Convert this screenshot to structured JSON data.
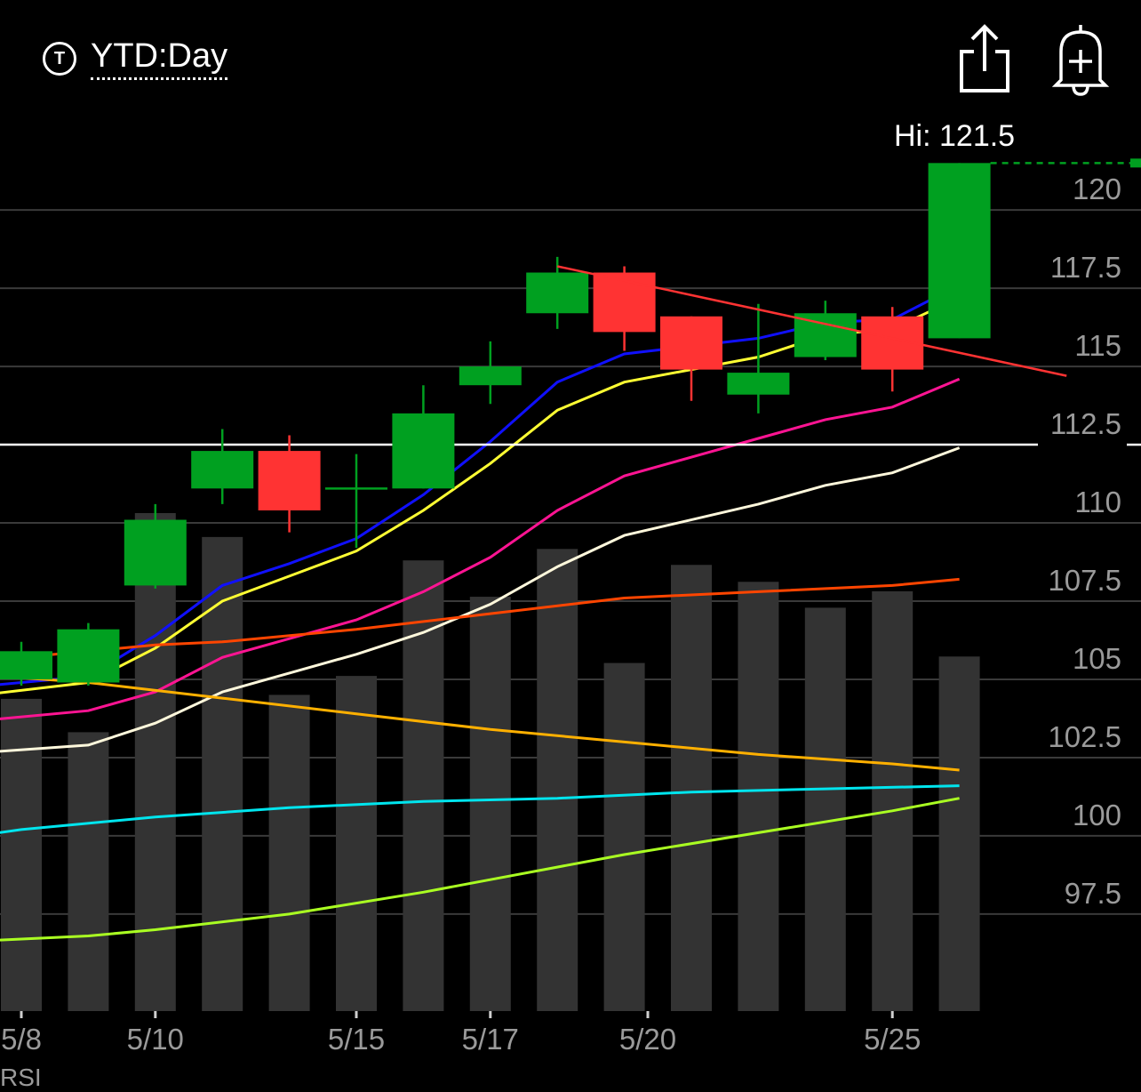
{
  "header": {
    "period_icon": "T",
    "period_label": "YTD:Day",
    "share_icon": "share-icon",
    "alert_icon": "bell-plus-icon"
  },
  "hi_label": "Hi: 121.5",
  "rsi_label": "RSI",
  "chart_data": {
    "type": "candlestick",
    "y_ticks": [
      "120",
      "117.5",
      "115",
      "112.5",
      "110",
      "107.5",
      "105",
      "102.5",
      "100",
      "97.5"
    ],
    "ylim": [
      94.4,
      123.3
    ],
    "x_tick_labels": [
      {
        "label": "5/8",
        "day": 0
      },
      {
        "label": "5/10",
        "day": 2
      },
      {
        "label": "5/15",
        "day": 5
      },
      {
        "label": "5/17",
        "day": 7
      },
      {
        "label": "5/20",
        "day": 9.35
      },
      {
        "label": "5/25",
        "day": 13
      }
    ],
    "candles": [
      {
        "day": 0,
        "open": 105.0,
        "close": 105.9,
        "high": 106.2,
        "low": 104.8
      },
      {
        "day": 1,
        "open": 104.9,
        "close": 106.6,
        "high": 106.8,
        "low": 104.8
      },
      {
        "day": 2,
        "open": 108.0,
        "close": 110.1,
        "high": 110.6,
        "low": 107.9
      },
      {
        "day": 3,
        "open": 111.1,
        "close": 112.3,
        "high": 113.0,
        "low": 110.6
      },
      {
        "day": 4,
        "open": 112.3,
        "close": 110.4,
        "high": 112.8,
        "low": 109.7
      },
      {
        "day": 5,
        "open": 111.1,
        "close": 111.1,
        "high": 112.2,
        "low": 109.2
      },
      {
        "day": 6,
        "open": 111.1,
        "close": 113.5,
        "high": 114.4,
        "low": 111.1
      },
      {
        "day": 7,
        "open": 114.4,
        "close": 115.0,
        "high": 115.8,
        "low": 113.8
      },
      {
        "day": 8,
        "open": 116.7,
        "close": 118.0,
        "high": 118.5,
        "low": 116.2
      },
      {
        "day": 9,
        "open": 118.0,
        "close": 116.1,
        "high": 118.2,
        "low": 115.5
      },
      {
        "day": 10,
        "open": 116.6,
        "close": 114.9,
        "high": 116.6,
        "low": 113.9
      },
      {
        "day": 11,
        "open": 114.1,
        "close": 114.8,
        "high": 117.0,
        "low": 113.5
      },
      {
        "day": 12,
        "open": 115.3,
        "close": 116.7,
        "high": 117.1,
        "low": 115.2
      },
      {
        "day": 13,
        "open": 116.6,
        "close": 114.9,
        "high": 116.9,
        "low": 114.2
      },
      {
        "day": 14,
        "open": 115.9,
        "close": 121.5,
        "high": 121.5,
        "low": 115.9
      }
    ],
    "volume": {
      "max_level": 1.0,
      "levels": [
        0.627,
        0.56,
        1.0,
        0.952,
        0.635,
        0.673,
        0.905,
        0.832,
        0.928,
        0.699,
        0.896,
        0.862,
        0.81,
        0.843,
        0.712
      ]
    },
    "moving_averages": [
      {
        "color": "#1010ff",
        "points": [
          [
            -1,
            104.7
          ],
          [
            1,
            105.1
          ],
          [
            2,
            106.4
          ],
          [
            3,
            108.0
          ],
          [
            4,
            108.7
          ],
          [
            5,
            109.5
          ],
          [
            6,
            110.9
          ],
          [
            7,
            112.6
          ],
          [
            8,
            114.5
          ],
          [
            9,
            115.4
          ],
          [
            11,
            115.9
          ],
          [
            12,
            116.4
          ],
          [
            13,
            116.5
          ],
          [
            14,
            117.6
          ]
        ]
      },
      {
        "color": "#ffff33",
        "points": [
          [
            -1,
            104.4
          ],
          [
            1,
            104.9
          ],
          [
            2,
            106.0
          ],
          [
            3,
            107.5
          ],
          [
            4,
            108.3
          ],
          [
            5,
            109.1
          ],
          [
            6,
            110.4
          ],
          [
            7,
            111.9
          ],
          [
            8,
            113.6
          ],
          [
            9,
            114.5
          ],
          [
            11,
            115.3
          ],
          [
            12,
            116.0
          ],
          [
            13,
            116.2
          ],
          [
            14,
            117.2
          ]
        ]
      },
      {
        "color": "#ff1493",
        "points": [
          [
            -1,
            103.6
          ],
          [
            1,
            104.0
          ],
          [
            2,
            104.6
          ],
          [
            3,
            105.7
          ],
          [
            4,
            106.3
          ],
          [
            5,
            106.9
          ],
          [
            6,
            107.8
          ],
          [
            7,
            108.9
          ],
          [
            8,
            110.4
          ],
          [
            9,
            111.5
          ],
          [
            11,
            112.7
          ],
          [
            12,
            113.3
          ],
          [
            13,
            113.7
          ],
          [
            14,
            114.6
          ]
        ]
      },
      {
        "color": "#fff8dc",
        "points": [
          [
            -1,
            102.6
          ],
          [
            1,
            102.9
          ],
          [
            2,
            103.6
          ],
          [
            3,
            104.6
          ],
          [
            4,
            105.2
          ],
          [
            5,
            105.8
          ],
          [
            6,
            106.5
          ],
          [
            7,
            107.4
          ],
          [
            8,
            108.6
          ],
          [
            9,
            109.6
          ],
          [
            11,
            110.6
          ],
          [
            12,
            111.2
          ],
          [
            13,
            111.6
          ],
          [
            14,
            112.4
          ]
        ]
      },
      {
        "color": "#ff4500",
        "points": [
          [
            -1,
            105.4
          ],
          [
            0,
            105.7
          ],
          [
            2,
            106.1
          ],
          [
            3,
            106.2
          ],
          [
            5,
            106.6
          ],
          [
            7,
            107.1
          ],
          [
            9,
            107.6
          ],
          [
            11,
            107.8
          ],
          [
            13,
            108.0
          ],
          [
            14,
            108.2
          ]
        ]
      },
      {
        "color": "#ffb000",
        "points": [
          [
            -1,
            105.2
          ],
          [
            1,
            104.9
          ],
          [
            3,
            104.4
          ],
          [
            5,
            103.9
          ],
          [
            7,
            103.4
          ],
          [
            9,
            103.0
          ],
          [
            11,
            102.6
          ],
          [
            13,
            102.3
          ],
          [
            14,
            102.1
          ]
        ]
      },
      {
        "color": "#00e5ee",
        "points": [
          [
            -1,
            99.9
          ],
          [
            0,
            100.2
          ],
          [
            2,
            100.6
          ],
          [
            4,
            100.9
          ],
          [
            6,
            101.1
          ],
          [
            8,
            101.2
          ],
          [
            10,
            101.4
          ],
          [
            12,
            101.5
          ],
          [
            14,
            101.6
          ]
        ]
      },
      {
        "color": "#aaff22",
        "points": [
          [
            -1,
            96.6
          ],
          [
            1,
            96.8
          ],
          [
            2,
            97.0
          ],
          [
            4,
            97.5
          ],
          [
            6,
            98.2
          ],
          [
            7,
            98.6
          ],
          [
            9,
            99.4
          ],
          [
            11,
            100.1
          ],
          [
            13,
            100.8
          ],
          [
            14,
            101.2
          ]
        ]
      }
    ],
    "trendline": {
      "color": "#ff3333",
      "from": [
        8,
        118.2
      ],
      "to": [
        15.6,
        114.7
      ]
    },
    "hline": {
      "value": 112.5,
      "color": "#ffffff"
    },
    "last_price": {
      "value": 121.5,
      "color": "#00a020"
    },
    "up_color": "#00a020",
    "down_color": "#ff3333",
    "volume_color": "#333333",
    "grid_color": "#3a3a3a",
    "tick_color": "#9a9a9a"
  }
}
